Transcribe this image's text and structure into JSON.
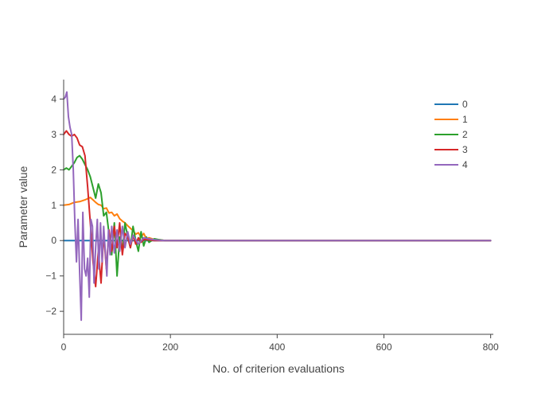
{
  "chart_data": {
    "type": "line",
    "xlabel": "No. of criterion evaluations",
    "ylabel": "Parameter value",
    "xlim": [
      0,
      805
    ],
    "ylim": [
      -2.65,
      4.55
    ],
    "xticks": [
      0,
      200,
      400,
      600,
      800
    ],
    "yticks": [
      -2,
      -1,
      0,
      1,
      2,
      3,
      4
    ],
    "xtick_labels": [
      "0",
      "200",
      "400",
      "600",
      "800"
    ],
    "ytick_labels": [
      "−2",
      "−1",
      "0",
      "1",
      "2",
      "3",
      "4"
    ],
    "grid": false,
    "legend_position": "top-right",
    "series": [
      {
        "name": "0",
        "color": "#1f77b4",
        "x": [
          0,
          800
        ],
        "y": [
          0,
          0
        ]
      },
      {
        "name": "1",
        "color": "#ff7f0e",
        "x": [
          0,
          10,
          20,
          30,
          40,
          50,
          55,
          60,
          65,
          70,
          75,
          80,
          85,
          90,
          95,
          100,
          105,
          110,
          115,
          120,
          125,
          130,
          135,
          140,
          145,
          150,
          155,
          160,
          170,
          180,
          190,
          200,
          800
        ],
        "y": [
          1.0,
          1.02,
          1.08,
          1.1,
          1.15,
          1.22,
          1.15,
          1.08,
          1.02,
          1.0,
          0.9,
          0.92,
          0.78,
          0.8,
          0.7,
          0.75,
          0.62,
          0.55,
          0.5,
          0.42,
          0.35,
          0.28,
          0.18,
          0.22,
          0.1,
          0.2,
          0.05,
          0.08,
          0.03,
          0.02,
          0.0,
          0.0,
          0.0
        ]
      },
      {
        "name": "2",
        "color": "#2ca02c",
        "x": [
          0,
          5,
          10,
          15,
          20,
          25,
          30,
          35,
          40,
          45,
          50,
          55,
          60,
          65,
          70,
          75,
          80,
          85,
          90,
          95,
          100,
          105,
          110,
          115,
          120,
          125,
          130,
          135,
          140,
          145,
          150,
          155,
          160,
          170,
          180,
          190,
          200,
          800
        ],
        "y": [
          2.0,
          2.05,
          2.0,
          2.1,
          2.2,
          2.35,
          2.4,
          2.3,
          2.15,
          2.0,
          1.8,
          1.5,
          1.2,
          1.6,
          1.35,
          0.7,
          0.8,
          0.2,
          -0.4,
          0.5,
          -1.0,
          0.1,
          -0.3,
          0.5,
          0.1,
          -0.2,
          0.4,
          0.0,
          -0.3,
          0.25,
          -0.15,
          0.1,
          -0.05,
          0.05,
          0.02,
          0.0,
          0.0,
          0.0
        ]
      },
      {
        "name": "3",
        "color": "#d62728",
        "x": [
          0,
          5,
          10,
          15,
          20,
          25,
          30,
          35,
          40,
          45,
          50,
          55,
          60,
          65,
          70,
          75,
          80,
          85,
          90,
          95,
          100,
          105,
          110,
          115,
          120,
          125,
          130,
          135,
          140,
          145,
          150,
          160,
          170,
          180,
          190,
          200,
          800
        ],
        "y": [
          3.0,
          3.1,
          3.0,
          2.95,
          3.0,
          2.9,
          2.7,
          2.65,
          2.4,
          1.5,
          0.5,
          -0.6,
          -1.3,
          -0.3,
          -1.2,
          0.2,
          -0.8,
          0.3,
          -0.3,
          0.4,
          -0.2,
          0.5,
          -0.4,
          0.2,
          0.1,
          -0.2,
          0.15,
          -0.1,
          0.08,
          -0.05,
          0.03,
          0.02,
          0.0,
          0.0,
          0.0,
          0.0,
          0.0
        ]
      },
      {
        "name": "4",
        "color": "#9467bd",
        "x": [
          0,
          3,
          6,
          9,
          12,
          15,
          18,
          21,
          24,
          27,
          30,
          33,
          36,
          39,
          42,
          45,
          48,
          51,
          54,
          57,
          60,
          63,
          66,
          69,
          72,
          75,
          78,
          81,
          84,
          87,
          90,
          95,
          100,
          105,
          110,
          115,
          120,
          125,
          130,
          140,
          150,
          160,
          170,
          180,
          190,
          200,
          800
        ],
        "y": [
          4.0,
          4.05,
          4.2,
          3.5,
          3.2,
          3.0,
          2.0,
          0.5,
          -0.6,
          0.6,
          -0.9,
          -2.25,
          0.8,
          -0.8,
          -1.0,
          -0.5,
          -1.6,
          0.6,
          0.4,
          -1.2,
          -0.2,
          0.6,
          -0.8,
          0.5,
          -0.6,
          0.4,
          -0.3,
          -1.0,
          0.3,
          -0.4,
          0.4,
          -0.35,
          0.3,
          -0.3,
          0.4,
          -0.2,
          0.25,
          -0.1,
          0.15,
          -0.1,
          0.08,
          0.05,
          0.02,
          0.01,
          0.0,
          0.0,
          0.0
        ]
      }
    ]
  }
}
